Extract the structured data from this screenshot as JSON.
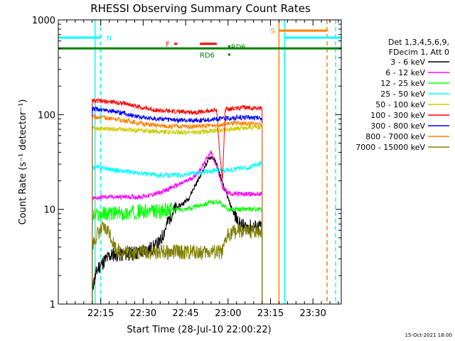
{
  "chart_data": {
    "type": "line",
    "title": "RHESSI Observing Summary Count Rates",
    "xlabel": "Start Time (28-Jul-10 22:00:22)",
    "ylabel": "Count Rate (s⁻¹ detector⁻¹)",
    "yscale": "log",
    "ylim": [
      1,
      1000
    ],
    "xlim_minutes": [
      0,
      100
    ],
    "x_tick_labels": [
      "22:15",
      "22:30",
      "22:45",
      "23:00",
      "23:15",
      "23:30"
    ],
    "x_tick_values_minutes": [
      15,
      30,
      45,
      60,
      75,
      90
    ],
    "y_tick_labels": [
      "1",
      "10",
      "100",
      "1000"
    ],
    "y_tick_values": [
      1,
      10,
      100,
      1000
    ],
    "legend_header": [
      "Det 1,3,4,5,6,9,",
      "FDecim 1, Att 0"
    ],
    "legend_position": "right",
    "footer": "15-Oct-2021 18:00",
    "data_window_minutes": [
      12,
      72
    ],
    "series": [
      {
        "name": "3 - 6 keV",
        "color": "#000000",
        "x": [
          12,
          14,
          16,
          18,
          20,
          22,
          24,
          26,
          28,
          30,
          32,
          34,
          36,
          38,
          40,
          42,
          44,
          46,
          48,
          50,
          52,
          53,
          54,
          55,
          56,
          57,
          58,
          60,
          62,
          64,
          66,
          68,
          70,
          72
        ],
        "y": [
          1.5,
          2.4,
          2.8,
          3.2,
          3.4,
          3.3,
          3.4,
          3.4,
          3.5,
          3.6,
          3.8,
          4.0,
          4.5,
          6.5,
          9,
          10.5,
          11.5,
          13,
          17,
          22,
          29,
          33,
          36,
          34,
          30,
          24,
          19,
          13,
          9,
          7,
          6.5,
          6.5,
          6.5,
          6.5
        ]
      },
      {
        "name": "6 - 12 keV",
        "color": "#ff00ff",
        "x": [
          12,
          16,
          20,
          24,
          28,
          32,
          36,
          40,
          44,
          48,
          50,
          52,
          53,
          54,
          55,
          56,
          57,
          58,
          60,
          62,
          66,
          70,
          72
        ],
        "y": [
          13,
          13.5,
          13.5,
          13.5,
          13.5,
          14,
          15,
          17,
          19,
          22,
          26,
          32,
          37,
          40,
          34,
          28,
          22,
          17,
          15,
          14.5,
          14.5,
          14.5,
          14.5
        ]
      },
      {
        "name": "12 - 25 keV",
        "color": "#00ff00",
        "x": [
          12,
          16,
          20,
          24,
          28,
          32,
          36,
          40,
          44,
          48,
          52,
          55,
          57,
          58,
          60,
          64,
          68,
          72
        ],
        "y": [
          8.5,
          9,
          9,
          9,
          9.5,
          9.5,
          9.5,
          10,
          10,
          10.5,
          11.5,
          12,
          12,
          11,
          10,
          10,
          10,
          10
        ]
      },
      {
        "name": "25 - 50 keV",
        "color": "#00ffff",
        "x": [
          12,
          16,
          20,
          24,
          28,
          32,
          36,
          40,
          44,
          48,
          52,
          56,
          60,
          64,
          68,
          72
        ],
        "y": [
          28,
          27.5,
          26,
          25,
          24,
          23.5,
          23,
          23,
          23,
          24,
          25,
          26,
          26,
          27,
          28,
          31
        ]
      },
      {
        "name": "50 - 100 keV",
        "color": "#cccc00",
        "x": [
          12,
          16,
          20,
          24,
          28,
          32,
          36,
          40,
          44,
          48,
          52,
          56,
          60,
          64,
          68,
          72
        ],
        "y": [
          72,
          71,
          70,
          69,
          68,
          67,
          66,
          65,
          65,
          65,
          66,
          68,
          70,
          72,
          73,
          74
        ]
      },
      {
        "name": "100 - 300 keV",
        "color": "#ff0000",
        "x": [
          12,
          16,
          20,
          24,
          28,
          32,
          36,
          40,
          44,
          48,
          52,
          56,
          57,
          58,
          59,
          60,
          64,
          68,
          72
        ],
        "y": [
          140,
          138,
          135,
          130,
          122,
          115,
          110,
          108,
          107,
          106,
          108,
          112,
          40,
          20,
          112,
          115,
          118,
          118,
          117
        ]
      },
      {
        "name": "300 - 800 keV",
        "color": "#0000ff",
        "x": [
          12,
          16,
          20,
          24,
          28,
          32,
          36,
          40,
          44,
          48,
          52,
          56,
          60,
          64,
          68,
          72
        ],
        "y": [
          115,
          112,
          108,
          102,
          96,
          92,
          90,
          88,
          87,
          87,
          88,
          90,
          92,
          93,
          93,
          92
        ]
      },
      {
        "name": "800 - 7000 keV",
        "color": "#ff8000",
        "x": [
          12,
          16,
          20,
          24,
          28,
          32,
          36,
          40,
          44,
          48,
          52,
          56,
          60,
          64,
          68,
          72
        ],
        "y": [
          95,
          93,
          90,
          86,
          82,
          78,
          76,
          75,
          75,
          75,
          76,
          78,
          80,
          81,
          80,
          79
        ]
      },
      {
        "name": "7000 - 15000 keV",
        "color": "#808000",
        "x": [
          12,
          14,
          16,
          18,
          20,
          22,
          24,
          26,
          28,
          30,
          32,
          34,
          36,
          38,
          40,
          42,
          44,
          46,
          48,
          50,
          52,
          54,
          56,
          58,
          60,
          62,
          64,
          66,
          68,
          70,
          72
        ],
        "y": [
          4.2,
          5.6,
          6.3,
          5.8,
          4.0,
          3.5,
          3.6,
          3.5,
          3.5,
          3.6,
          3.5,
          3.5,
          3.6,
          3.5,
          3.5,
          3.6,
          3.5,
          3.5,
          3.6,
          3.5,
          3.5,
          3.6,
          3.5,
          3.5,
          5.5,
          5.8,
          5.8,
          5.8,
          5.8,
          5.9,
          6.0
        ]
      }
    ],
    "flag_lines": [
      {
        "label": "N",
        "color": "#00ffff",
        "x_start": 0,
        "x_end": 15,
        "value": 650,
        "label_x": 17
      },
      {
        "label": "N",
        "color": "#00ffff",
        "x_start": 80,
        "x_end": 100,
        "value": 650,
        "label_x": null
      },
      {
        "label": "S",
        "color": "#ff8000",
        "x_start": 78,
        "x_end": 95,
        "value": 770,
        "label_x": 75
      },
      {
        "label": "F",
        "color": "#ff0000",
        "x_start": 41,
        "x_end": 42,
        "value": 560,
        "label_x": 38
      },
      {
        "label": "",
        "color": "#ff0000",
        "x_start": 50,
        "x_end": 56,
        "value": 560,
        "label_x": null
      },
      {
        "label": "RD6",
        "color": "#008000",
        "x_start": 60,
        "x_end": 60.8,
        "value": 525,
        "label_x": 61
      },
      {
        "label": "RD6",
        "color": "#008000",
        "x_start": 60,
        "x_end": 60.8,
        "value": 430,
        "label_x": 50
      },
      {
        "label": "",
        "color": "#008000",
        "x_start": 0,
        "x_end": 100,
        "value": 500,
        "label_x": null
      }
    ],
    "vertical_markers": [
      {
        "x": 13,
        "color": "#00ffff",
        "style": "solid"
      },
      {
        "x": 15,
        "color": "#00ffff",
        "style": "dashed"
      },
      {
        "x": 78,
        "color": "#ff8000",
        "style": "solid"
      },
      {
        "x": 80,
        "color": "#00ffff",
        "style": "solid"
      },
      {
        "x": 95,
        "color": "#ff8000",
        "style": "dashed"
      },
      {
        "x": 98,
        "color": "#00ffff",
        "style": "dashed"
      }
    ]
  }
}
